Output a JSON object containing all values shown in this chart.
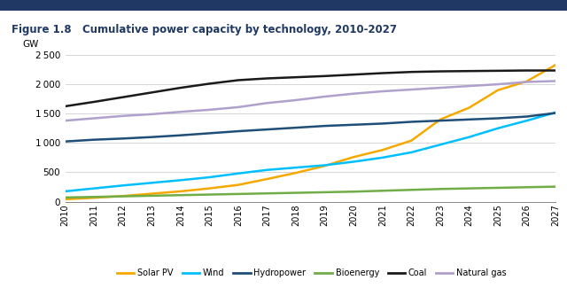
{
  "title_figure": "Figure 1.8",
  "title_main": "Cumulative power capacity by technology, 2010-2027",
  "ylabel": "GW",
  "years": [
    2010,
    2011,
    2012,
    2013,
    2014,
    2015,
    2016,
    2017,
    2018,
    2019,
    2020,
    2021,
    2022,
    2023,
    2024,
    2025,
    2026,
    2027
  ],
  "series": {
    "Solar PV": {
      "color": "#F5A800",
      "values": [
        40,
        65,
        95,
        135,
        175,
        225,
        285,
        385,
        490,
        610,
        760,
        880,
        1040,
        1400,
        1600,
        1900,
        2050,
        2330
      ]
    },
    "Wind": {
      "color": "#00BFFF",
      "values": [
        175,
        225,
        275,
        320,
        365,
        415,
        480,
        540,
        580,
        620,
        680,
        750,
        840,
        970,
        1100,
        1250,
        1380,
        1520
      ]
    },
    "Hydropower": {
      "color": "#1F4E79",
      "values": [
        1025,
        1055,
        1075,
        1100,
        1130,
        1165,
        1200,
        1230,
        1260,
        1290,
        1310,
        1330,
        1360,
        1380,
        1400,
        1420,
        1450,
        1510
      ]
    },
    "Bioenergy": {
      "color": "#70AD47",
      "values": [
        70,
        80,
        90,
        100,
        110,
        120,
        130,
        140,
        150,
        160,
        170,
        185,
        200,
        215,
        225,
        235,
        245,
        255
      ]
    },
    "Coal": {
      "color": "#1A1A1A",
      "values": [
        1625,
        1700,
        1780,
        1860,
        1940,
        2010,
        2070,
        2100,
        2120,
        2140,
        2165,
        2190,
        2210,
        2220,
        2225,
        2230,
        2235,
        2235
      ]
    },
    "Natural gas": {
      "color": "#B0A0CC",
      "values": [
        1380,
        1420,
        1460,
        1490,
        1530,
        1565,
        1610,
        1680,
        1730,
        1790,
        1840,
        1880,
        1910,
        1940,
        1970,
        2000,
        2040,
        2055
      ]
    }
  },
  "ylim": [
    0,
    2700
  ],
  "yticks": [
    0,
    500,
    1000,
    1500,
    2000,
    2500
  ],
  "bg_color": "#FFFFFF",
  "grid_color": "#D0D0D0",
  "title_color": "#1F3864",
  "top_bar_color": "#1F3864",
  "top_bar_height": 0.012
}
